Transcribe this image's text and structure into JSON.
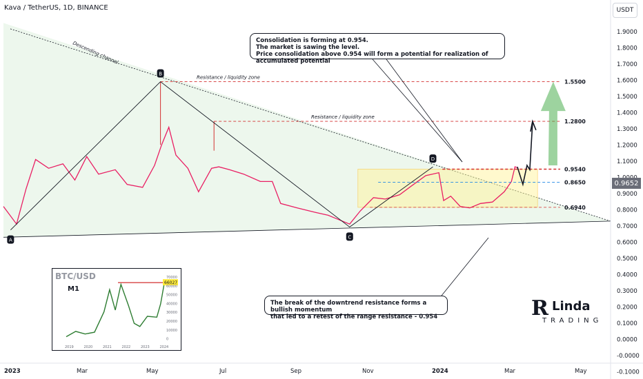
{
  "header": {
    "symbol": "Kava / TetherUS, 1D, BINANCE"
  },
  "currency_button": "USDT",
  "last_price": "0.9652",
  "chart_data": {
    "type": "line",
    "title": "Kava / TetherUS, 1D, BINANCE",
    "x_ticks": [
      "2023",
      "Mar",
      "May",
      "Jul",
      "Sep",
      "Nov",
      "2024",
      "Mar",
      "May"
    ],
    "y_ticks": [
      "1.9000",
      "1.8000",
      "1.7000",
      "1.6000",
      "1.5000",
      "1.4000",
      "1.3000",
      "1.2000",
      "1.1000",
      "1.0000",
      "0.9000",
      "0.8000",
      "0.7000",
      "0.6000",
      "0.5000",
      "0.4000",
      "0.3000",
      "0.2000",
      "0.1000",
      "0.0000",
      "-0.0000",
      "-0.1000"
    ],
    "ylim": [
      -0.13,
      2.0
    ],
    "series": [
      {
        "values": [
          [
            "2023-01-01",
            0.7
          ],
          [
            "2023-01-12",
            0.58
          ],
          [
            "2023-01-20",
            0.82
          ],
          [
            "2023-01-28",
            1.02
          ],
          [
            "2023-02-08",
            0.96
          ],
          [
            "2023-02-20",
            0.99
          ],
          [
            "2023-03-02",
            0.88
          ],
          [
            "2023-03-12",
            1.04
          ],
          [
            "2023-03-22",
            0.92
          ],
          [
            "2023-04-05",
            0.95
          ],
          [
            "2023-04-15",
            0.85
          ],
          [
            "2023-04-28",
            0.83
          ],
          [
            "2023-05-08",
            0.98
          ],
          [
            "2023-05-14",
            1.12
          ],
          [
            "2023-05-20",
            1.24
          ],
          [
            "2023-05-26",
            1.05
          ],
          [
            "2023-06-05",
            0.96
          ],
          [
            "2023-06-14",
            0.8
          ],
          [
            "2023-06-25",
            0.96
          ],
          [
            "2023-07-01",
            0.97
          ],
          [
            "2023-07-10",
            0.95
          ],
          [
            "2023-07-22",
            0.92
          ],
          [
            "2023-08-05",
            0.87
          ],
          [
            "2023-08-15",
            0.87
          ],
          [
            "2023-08-22",
            0.72
          ],
          [
            "2023-09-05",
            0.69
          ],
          [
            "2023-09-20",
            0.66
          ],
          [
            "2023-10-01",
            0.64
          ],
          [
            "2023-10-10",
            0.61
          ],
          [
            "2023-10-19",
            0.58
          ],
          [
            "2023-10-28",
            0.67
          ],
          [
            "2023-11-08",
            0.76
          ],
          [
            "2023-11-18",
            0.75
          ],
          [
            "2023-11-30",
            0.78
          ],
          [
            "2023-12-10",
            0.84
          ],
          [
            "2023-12-22",
            0.91
          ],
          [
            "2024-01-02",
            0.93
          ],
          [
            "2024-01-06",
            0.74
          ],
          [
            "2024-01-12",
            0.77
          ],
          [
            "2024-01-20",
            0.7
          ],
          [
            "2024-01-28",
            0.69
          ],
          [
            "2024-02-06",
            0.72
          ],
          [
            "2024-02-16",
            0.73
          ],
          [
            "2024-02-26",
            0.8
          ],
          [
            "2024-03-03",
            0.87
          ],
          [
            "2024-03-06",
            0.97
          ],
          [
            "2024-03-08",
            0.9652
          ]
        ]
      }
    ],
    "levels": [
      {
        "value": 1.55,
        "label": "1.5500"
      },
      {
        "value": 1.28,
        "label": "1.2800"
      },
      {
        "value": 0.954,
        "label": "0.9540"
      },
      {
        "value": 0.865,
        "label": "0.8650"
      },
      {
        "value": 0.694,
        "label": "0.6940"
      }
    ],
    "points": [
      {
        "label": "A",
        "date": "2023-01-07",
        "value": 0.54
      },
      {
        "label": "B",
        "date": "2023-05-13",
        "value": 1.55
      },
      {
        "label": "C",
        "date": "2023-10-19",
        "value": 0.56
      },
      {
        "label": "D",
        "date": "2023-12-28",
        "value": 0.97
      }
    ],
    "annotations": [
      "Descending channel",
      "Resistance / liquidity zone",
      "Resistance / liquidity zone"
    ]
  },
  "note_top": {
    "line1": "Consolidation is forming at 0.954.",
    "line2": "The market is sawing the level.",
    "line3": "Price consolidation above 0.954 will form a potential for realization of accumulated potential"
  },
  "note_bottom": {
    "line1": "The break of the downtrend resistance forms a bullish momentum",
    "line2": "that led to a retest of the range resistance - 0.954"
  },
  "inset": {
    "title": "BTC/USD",
    "timeframe": "M1",
    "last_price": "66027",
    "x_ticks": [
      "2019",
      "2020",
      "2021",
      "2022",
      "2023",
      "2024"
    ],
    "y_ticks": [
      "70000",
      "60000",
      "50000",
      "40000",
      "30000",
      "20000",
      "10000",
      "0"
    ],
    "values": [
      [
        "2019",
        5000
      ],
      [
        "2019.5",
        11000
      ],
      [
        "2020",
        8000
      ],
      [
        "2020.5",
        10000
      ],
      [
        "2021",
        33000
      ],
      [
        "2021.3",
        58000
      ],
      [
        "2021.6",
        35000
      ],
      [
        "2021.9",
        64000
      ],
      [
        "2022.3",
        40000
      ],
      [
        "2022.6",
        20000
      ],
      [
        "2022.9",
        16500
      ],
      [
        "2023.3",
        28000
      ],
      [
        "2023.8",
        27000
      ],
      [
        "2024",
        42000
      ],
      [
        "2024.2",
        66027
      ]
    ]
  },
  "logo": {
    "big": "R",
    "line1": "Linda",
    "line2": "TRADING"
  },
  "colors": {
    "bull": "#26a69a",
    "bear": "#ef5350",
    "price_line": "#e91e63",
    "green_arrow": "#4caf50",
    "box_fill": "#fff59d",
    "box_border": "#ffb300"
  }
}
